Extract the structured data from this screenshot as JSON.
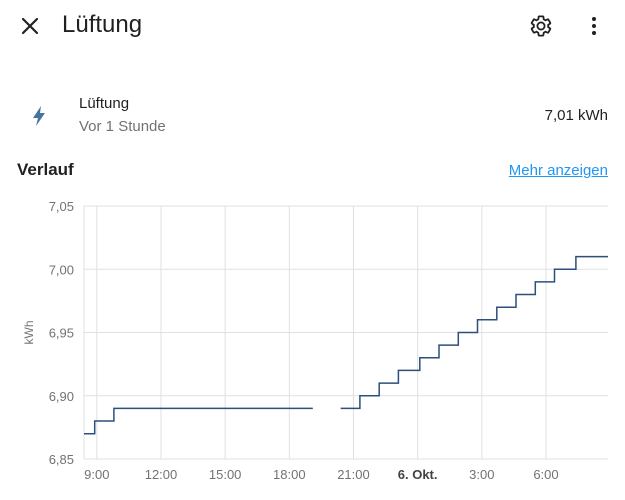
{
  "header": {
    "title": "Lüftung",
    "close_icon": "close-icon",
    "settings_icon": "gear-icon",
    "more_icon": "more-vertical-icon"
  },
  "entity": {
    "icon": "lightning-bolt-icon",
    "name": "Lüftung",
    "last_changed": "Vor 1 Stunde",
    "value": "7,01 kWh"
  },
  "history": {
    "title": "Verlauf",
    "more_link": "Mehr anzeigen"
  },
  "colors": {
    "accent": "#2196f3",
    "line": "#2c4f7c",
    "icon": "#44739e",
    "grid": "#e0e0e0"
  },
  "chart_data": {
    "type": "line",
    "ylabel": "kWh",
    "ylim": [
      6.85,
      7.05
    ],
    "y_ticks": [
      "7,05",
      "7,00",
      "6,95",
      "6,90",
      "6,85"
    ],
    "x_ticks": [
      "9:00",
      "12:00",
      "15:00",
      "18:00",
      "21:00",
      "6. Okt.",
      "3:00",
      "6:00"
    ],
    "x_unit": "hours since 0:00 on 5. Okt.",
    "xlim": [
      8.4,
      32.9
    ],
    "grid": true,
    "step": true,
    "segments": [
      [
        [
          8.4,
          6.87
        ],
        [
          8.9,
          6.87
        ],
        [
          8.9,
          6.88
        ],
        [
          9.8,
          6.88
        ],
        [
          9.8,
          6.89
        ],
        [
          19.1,
          6.89
        ]
      ],
      [
        [
          20.4,
          6.89
        ],
        [
          21.3,
          6.89
        ],
        [
          21.3,
          6.9
        ],
        [
          22.2,
          6.9
        ],
        [
          22.2,
          6.91
        ],
        [
          23.1,
          6.91
        ],
        [
          23.1,
          6.92
        ],
        [
          24.1,
          6.92
        ],
        [
          24.1,
          6.93
        ],
        [
          25.0,
          6.93
        ],
        [
          25.0,
          6.94
        ],
        [
          25.9,
          6.94
        ],
        [
          25.9,
          6.95
        ],
        [
          26.8,
          6.95
        ],
        [
          26.8,
          6.96
        ],
        [
          27.7,
          6.96
        ],
        [
          27.7,
          6.97
        ],
        [
          28.6,
          6.97
        ],
        [
          28.6,
          6.98
        ],
        [
          29.5,
          6.98
        ],
        [
          29.5,
          6.99
        ],
        [
          30.4,
          6.99
        ],
        [
          30.4,
          7.0
        ],
        [
          31.4,
          7.0
        ],
        [
          31.4,
          7.01
        ],
        [
          32.9,
          7.01
        ]
      ]
    ]
  }
}
